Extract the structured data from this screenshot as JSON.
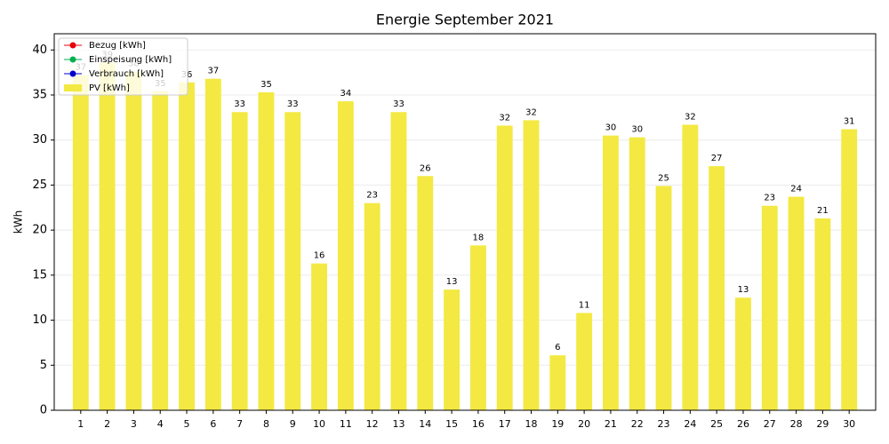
{
  "chart_data": {
    "type": "bar",
    "title": "Energie September 2021",
    "ylabel": "kWh",
    "categories": [
      "1",
      "2",
      "3",
      "4",
      "5",
      "6",
      "7",
      "8",
      "9",
      "10",
      "11",
      "12",
      "13",
      "14",
      "15",
      "16",
      "17",
      "18",
      "19",
      "20",
      "21",
      "22",
      "23",
      "24",
      "25",
      "26",
      "27",
      "28",
      "29",
      "30"
    ],
    "series": [
      {
        "name": "Bezug [kWh]",
        "type": "line",
        "color": "#e8000b",
        "values": [
          null,
          null,
          null,
          null,
          null,
          null,
          null,
          null,
          null,
          null,
          null,
          null,
          null,
          null,
          null,
          null,
          null,
          null,
          null,
          null,
          null,
          null,
          null,
          null,
          null,
          null,
          null,
          null,
          null,
          null
        ]
      },
      {
        "name": "Einspeisung [kWh]",
        "type": "line",
        "color": "#00b050",
        "values": [
          null,
          null,
          null,
          null,
          null,
          null,
          null,
          null,
          null,
          null,
          null,
          null,
          null,
          null,
          null,
          null,
          null,
          null,
          null,
          null,
          null,
          null,
          null,
          null,
          null,
          null,
          null,
          null,
          null,
          null
        ]
      },
      {
        "name": "Verbrauch [kWh]",
        "type": "line",
        "color": "#0000cc",
        "values": [
          null,
          null,
          null,
          null,
          null,
          null,
          null,
          null,
          null,
          null,
          null,
          null,
          null,
          null,
          null,
          null,
          null,
          null,
          null,
          null,
          null,
          null,
          null,
          null,
          null,
          null,
          null,
          null,
          null,
          null
        ]
      },
      {
        "name": "PV [kWh]",
        "type": "bar",
        "color": "#f3e942",
        "values": [
          37.2,
          38.6,
          37.6,
          35.4,
          36.4,
          36.8,
          33.1,
          35.3,
          33.1,
          16.3,
          34.3,
          23.0,
          33.1,
          26.0,
          13.4,
          18.3,
          31.6,
          32.2,
          6.1,
          10.8,
          30.5,
          30.3,
          24.9,
          31.7,
          27.1,
          12.5,
          22.7,
          23.7,
          21.3,
          31.2
        ],
        "value_labels": [
          "37",
          "39",
          "38",
          "35",
          "36",
          "37",
          "33",
          "35",
          "33",
          "16",
          "34",
          "23",
          "33",
          "26",
          "13",
          "18",
          "32",
          "32",
          "6",
          "11",
          "30",
          "30",
          "25",
          "32",
          "27",
          "13",
          "23",
          "24",
          "21",
          "31"
        ]
      }
    ],
    "ylim": [
      0,
      41.8
    ],
    "yticks": [
      0,
      5,
      10,
      15,
      20,
      25,
      30,
      35,
      40
    ],
    "grid": true,
    "legend": "upper left"
  }
}
